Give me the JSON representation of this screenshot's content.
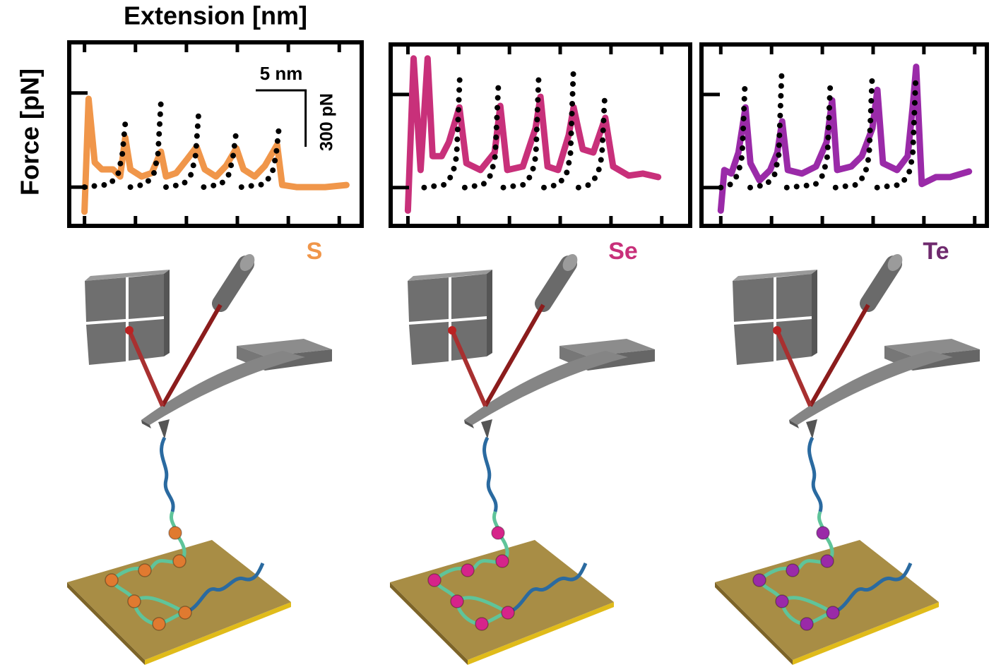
{
  "chart_data": [
    {
      "type": "line",
      "xlabel": "Extension [nm]",
      "ylabel": "Force [pN]",
      "label": "S",
      "label_color": "#f0964a",
      "xlim": [
        -1.5,
        27.2
      ],
      "ylim": [
        -206,
        769
      ],
      "xticks": [
        0,
        5,
        10,
        15,
        20,
        25
      ],
      "yticks": [
        0,
        500
      ],
      "scale_bar": {
        "x_length": 5,
        "x_label": "5 nm",
        "y_length": 300,
        "y_label": "300 pN"
      },
      "series": [
        {
          "color": "#f0964a",
          "linestyle": "solid",
          "x": [
            0,
            0.4,
            1,
            1.7,
            2.8,
            3.5,
            4,
            4.5,
            5.6,
            6.6,
            7.5,
            8,
            9,
            10.1,
            11,
            11.8,
            12.9,
            13.9,
            14.9,
            15.6,
            16.7,
            17.7,
            18.9,
            19.4,
            20.8,
            22.2,
            23.6,
            25.7
          ],
          "values": [
            -131,
            469,
            131,
            94,
            94,
            56,
            263,
            94,
            56,
            75,
            188,
            56,
            75,
            150,
            214,
            94,
            56,
            113,
            206,
            94,
            56,
            113,
            225,
            11,
            0,
            0,
            0,
            11
          ]
        },
        {
          "color": "#000000",
          "linestyle": "dotted",
          "x": [
            0,
            2.5,
            3.3,
            3.7,
            4,
            4.25,
            4.5,
            6,
            6.8,
            7.2,
            7.5,
            7.75,
            8,
            9.7,
            10.5,
            10.9,
            11.2,
            11.45,
            11.7,
            13.4,
            14.2,
            14.6,
            14.9,
            15.15,
            15.4,
            17.6,
            18.4,
            18.8,
            19.1
          ],
          "values": [
            0,
            15,
            70,
            170,
            338,
            null,
            0,
            15,
            70,
            170,
            450,
            null,
            0,
            15,
            70,
            170,
            394,
            null,
            0,
            15,
            70,
            170,
            300,
            null,
            0,
            15,
            70,
            170,
            326
          ]
        }
      ]
    },
    {
      "type": "line",
      "label": "Se",
      "label_color": "#c8307a",
      "xlim": [
        -1.7,
        27.8
      ],
      "ylim": [
        -206,
        769
      ],
      "xticks": [
        0,
        5,
        10,
        15,
        20,
        25
      ],
      "yticks": [
        0,
        500
      ],
      "series": [
        {
          "color": "#c8307a",
          "linestyle": "solid",
          "x": [
            0,
            0.56,
            1.25,
            1.94,
            2.43,
            3.33,
            4.03,
            5.07,
            5.76,
            7.15,
            8.54,
            9.1,
            9.79,
            11.32,
            12.57,
            13.06,
            13.75,
            14.79,
            15.83,
            16.32,
            17.22,
            18.26,
            19.44,
            20.21,
            21.74,
            23.13,
            24.65
          ],
          "values": [
            -124,
            694,
            94,
            694,
            169,
            169,
            244,
            431,
            131,
            94,
            188,
            439,
            94,
            113,
            319,
            488,
            113,
            94,
            281,
            431,
            206,
            188,
            375,
            113,
            64,
            75,
            56
          ]
        },
        {
          "color": "#000000",
          "linestyle": "dotted",
          "x": [
            1.6,
            3.6,
            4.4,
            4.8,
            5.1,
            5.35,
            5.6,
            7.4,
            8.2,
            8.6,
            8.9,
            9.15,
            9.4,
            11.4,
            12.2,
            12.6,
            12.9,
            13.15,
            13.4,
            14.8,
            15.6,
            16,
            16.3,
            16.55,
            16.8,
            17.9,
            18.7,
            19.1,
            19.4
          ],
          "values": [
            0,
            15,
            70,
            170,
            581,
            null,
            0,
            15,
            70,
            170,
            544,
            null,
            0,
            15,
            70,
            170,
            619,
            null,
            0,
            15,
            70,
            170,
            626,
            null,
            0,
            15,
            70,
            170,
            506
          ]
        }
      ]
    },
    {
      "type": "line",
      "label": "Te",
      "label_color": "#6f2a6e",
      "xlim": [
        -1.9,
        26.2
      ],
      "ylim": [
        -206,
        769
      ],
      "xticks": [
        0,
        5,
        10,
        15,
        20,
        25
      ],
      "yticks": [
        0,
        500
      ],
      "series": [
        {
          "color": "#9a2aa8",
          "linestyle": "solid",
          "x": [
            0,
            0.35,
            1.04,
            1.74,
            2.43,
            2.92,
            3.82,
            4.86,
            5.56,
            6.04,
            6.6,
            7.99,
            9.38,
            10.42,
            10.97,
            11.46,
            12.85,
            13.89,
            14.93,
            15.42,
            15.97,
            17.36,
            18.4,
            18.89,
            19.24,
            19.79,
            21.18,
            22.57,
            24.44
          ],
          "values": [
            -124,
            94,
            75,
            188,
            431,
            131,
            38,
            94,
            188,
            356,
            94,
            75,
            113,
            244,
            469,
            94,
            113,
            169,
            319,
            525,
            131,
            94,
            169,
            431,
            649,
            19,
            56,
            56,
            86
          ]
        },
        {
          "color": "#000000",
          "linestyle": "dotted",
          "x": [
            0,
            0.9,
            1.7,
            2.1,
            2.4,
            2.65,
            2.9,
            4.5,
            5.3,
            5.7,
            6,
            6.25,
            6.5,
            9.3,
            10.1,
            10.5,
            10.8,
            11.05,
            11.3,
            13.4,
            14.2,
            14.6,
            14.9,
            15.15,
            15.4,
            17.7,
            18.5,
            18.9,
            19.2
          ],
          "values": [
            0,
            15,
            70,
            170,
            581,
            null,
            0,
            15,
            70,
            170,
            619,
            null,
            0,
            15,
            70,
            170,
            581,
            null,
            0,
            15,
            70,
            170,
            581,
            null,
            0,
            15,
            70,
            170,
            600
          ]
        }
      ]
    }
  ]
}
